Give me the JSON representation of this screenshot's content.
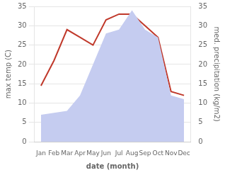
{
  "chart_data": {
    "type": "line",
    "categories": [
      "Jan",
      "Feb",
      "Mar",
      "Apr",
      "May",
      "Jun",
      "Jul",
      "Aug",
      "Sep",
      "Oct",
      "Nov",
      "Dec"
    ],
    "xlabel": "date (month)",
    "ylabel": "max temp (C)",
    "y2label": "med. precipitation (kg/m2)",
    "series": [
      {
        "type": "area",
        "color": "#c5ccf0",
        "axis": "y2",
        "values": [
          7.0,
          7.5,
          8.0,
          12.0,
          20.0,
          28.0,
          29.0,
          34.0,
          29.0,
          27.0,
          12.0,
          11.0
        ]
      },
      {
        "type": "line",
        "color": "#c0392b",
        "values": [
          14.5,
          21.0,
          29.0,
          27.0,
          25.0,
          31.5,
          33.0,
          33.0,
          30.0,
          27.0,
          13.0,
          12.0
        ]
      }
    ],
    "ylim": [
      0,
      35
    ],
    "yticks": [
      0,
      5,
      10,
      15,
      20,
      25,
      30,
      35
    ],
    "y2lim": [
      0,
      35
    ],
    "y2ticks": [
      0,
      5,
      10,
      15,
      20,
      25,
      30,
      35
    ],
    "grid": true
  }
}
